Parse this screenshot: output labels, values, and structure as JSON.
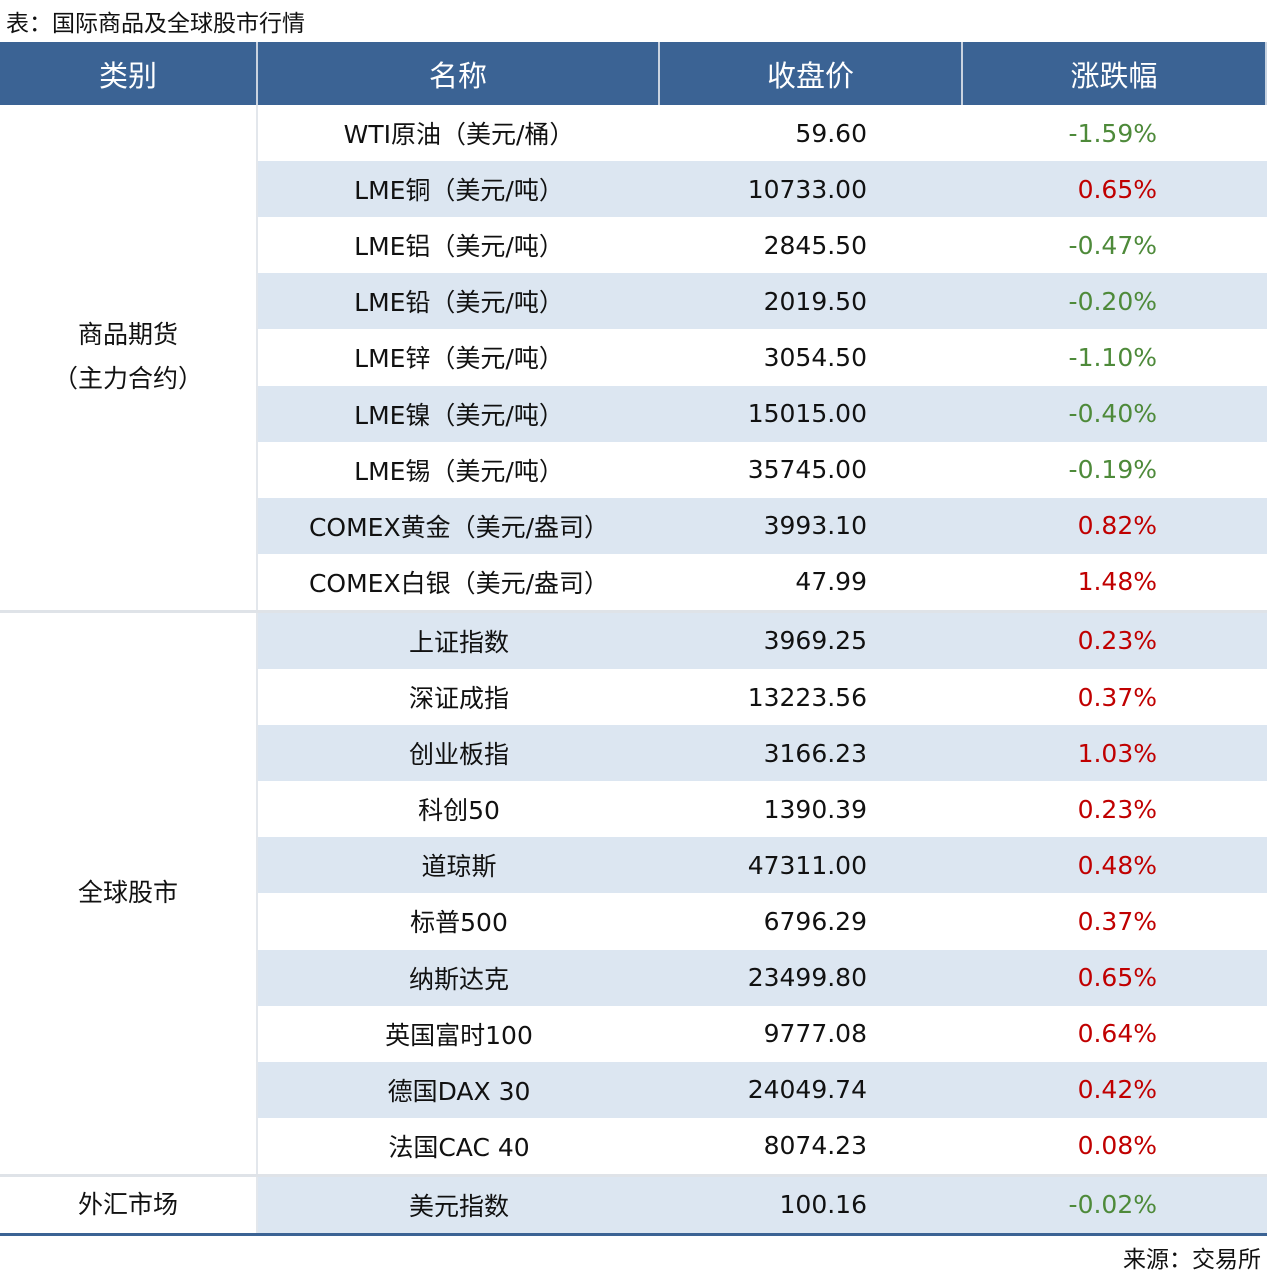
{
  "title": "表：国际商品及全球股市行情",
  "table": {
    "headers": [
      "类别",
      "名称",
      "收盘价",
      "涨跌幅"
    ],
    "groups": [
      {
        "category": [
          "商品期货",
          "（主力合约）"
        ],
        "rows": [
          [
            "WTI原油（美元/桶）",
            "59.60",
            "-1.59%"
          ],
          [
            "LME铜（美元/吨）",
            "10733.00",
            "0.65%"
          ],
          [
            "LME铝（美元/吨）",
            "2845.50",
            "-0.47%"
          ],
          [
            "LME铅（美元/吨）",
            "2019.50",
            "-0.20%"
          ],
          [
            "LME锌（美元/吨）",
            "3054.50",
            "-1.10%"
          ],
          [
            "LME镍（美元/吨）",
            "15015.00",
            "-0.40%"
          ],
          [
            "LME锡（美元/吨）",
            "35745.00",
            "-0.19%"
          ],
          [
            "COMEX黄金（美元/盎司）",
            "3993.10",
            "0.82%"
          ],
          [
            "COMEX白银（美元/盎司）",
            "47.99",
            "1.48%"
          ]
        ]
      },
      {
        "category": [
          "全球股市"
        ],
        "rows": [
          [
            "上证指数",
            "3969.25",
            "0.23%"
          ],
          [
            "深证成指",
            "13223.56",
            "0.37%"
          ],
          [
            "创业板指",
            "3166.23",
            "1.03%"
          ],
          [
            "科创50",
            "1390.39",
            "0.23%"
          ],
          [
            "道琼斯",
            "47311.00",
            "0.48%"
          ],
          [
            "标普500",
            "6796.29",
            "0.37%"
          ],
          [
            "纳斯达克",
            "23499.80",
            "0.65%"
          ],
          [
            "英国富时100",
            "9777.08",
            "0.64%"
          ],
          [
            "德国DAX 30",
            "24049.74",
            "0.42%"
          ],
          [
            "法国CAC 40",
            "8074.23",
            "0.08%"
          ]
        ]
      },
      {
        "category": [
          "外汇市场"
        ],
        "rows": [
          [
            "美元指数",
            "100.16",
            "-0.02%"
          ]
        ]
      }
    ]
  },
  "source": "来源：交易所"
}
